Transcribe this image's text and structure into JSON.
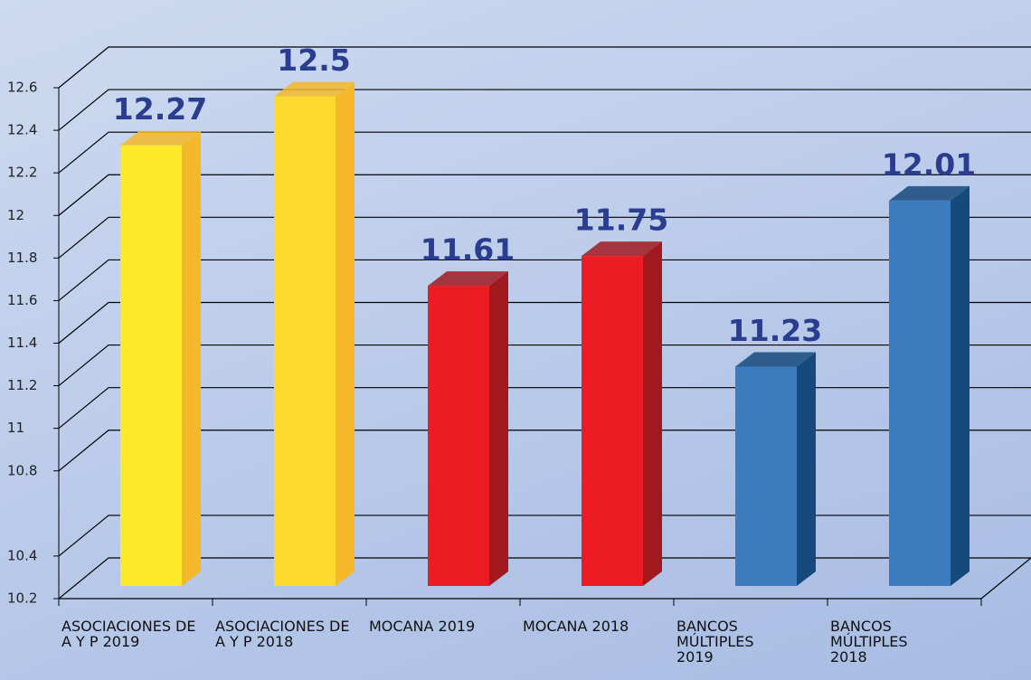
{
  "chart_data": {
    "type": "bar3d",
    "categories": [
      "ASOCIACIONES DE A Y P 2019",
      "ASOCIACIONES DE A Y P 2018",
      "MOCANA 2019",
      "MOCANA 2018",
      "BANCOS MÚLTIPLES 2019",
      "BANCOS MÚLTIPLES 2018"
    ],
    "values": [
      12.27,
      12.5,
      11.61,
      11.75,
      11.23,
      12.01
    ],
    "colors": [
      "#fde92a",
      "#fcd92e",
      "#ed1c24",
      "#ed1c24",
      "#3d7cbf",
      "#3d7cbf"
    ],
    "side_colors": [
      "#f5b82a",
      "#f5b82a",
      "#a0191e",
      "#a0191e",
      "#174a7c",
      "#174a7c"
    ],
    "ylim": [
      10.2,
      12.6
    ],
    "yticks": [
      10.2,
      10.4,
      10.8,
      11,
      11.2,
      11.4,
      11.6,
      11.8,
      12,
      12.2,
      12.4,
      12.6
    ],
    "grid": true
  }
}
